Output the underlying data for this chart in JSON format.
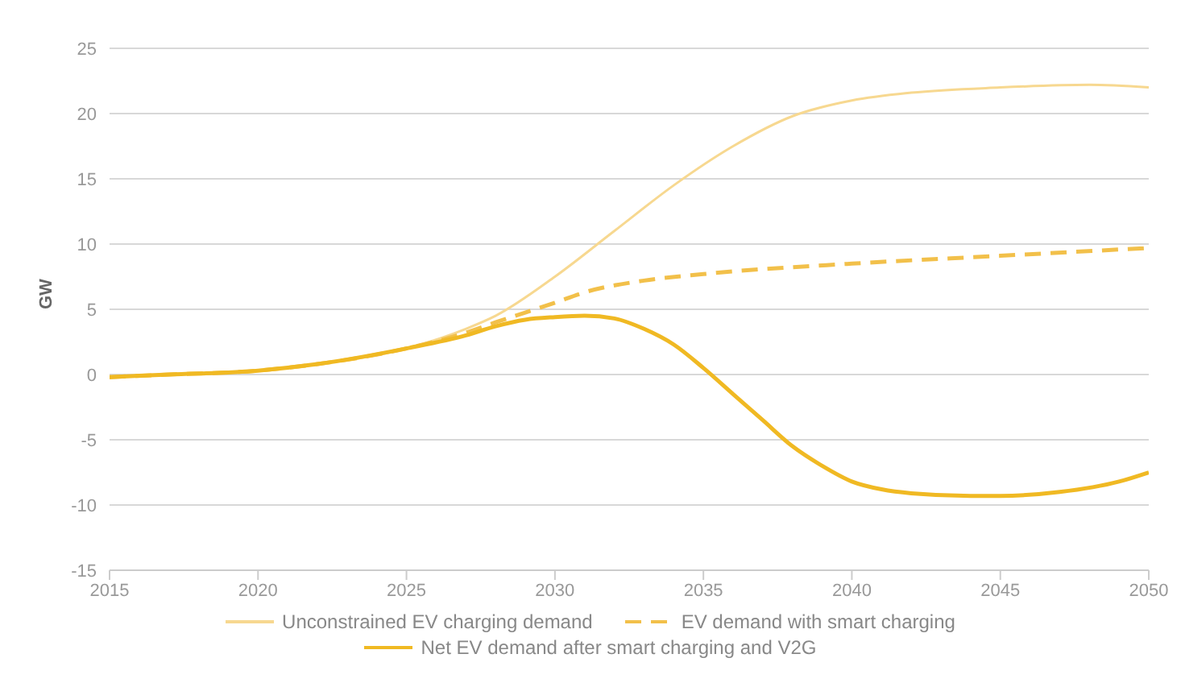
{
  "chart_data": {
    "type": "line",
    "ylabel": "GW",
    "xlim": [
      2015,
      2050
    ],
    "xticks": [
      2015,
      2020,
      2025,
      2030,
      2035,
      2040,
      2045,
      2050
    ],
    "ylim": [
      -15,
      25
    ],
    "yticks": [
      -15,
      -10,
      -5,
      0,
      5,
      10,
      15,
      20,
      25
    ],
    "grid": "y",
    "legend": "bottom",
    "series": [
      {
        "name": "Unconstrained EV charging demand",
        "color": "#f7d890",
        "line_style": "solid",
        "x": [
          2015,
          2017,
          2020,
          2022,
          2025,
          2027,
          2028,
          2030,
          2032,
          2034,
          2036,
          2038,
          2040,
          2042,
          2045,
          2048,
          2050
        ],
        "values": [
          -0.2,
          0,
          0.3,
          0.8,
          2,
          3.5,
          4.5,
          7.5,
          11,
          14.5,
          17.5,
          19.8,
          21,
          21.6,
          22,
          22.2,
          22
        ]
      },
      {
        "name": "EV demand with smart charging",
        "color": "#f2c04a",
        "line_style": "dashed",
        "x": [
          2015,
          2017,
          2020,
          2022,
          2025,
          2027,
          2028,
          2030,
          2031,
          2033,
          2035,
          2040,
          2045,
          2050
        ],
        "values": [
          -0.2,
          0,
          0.3,
          0.8,
          2,
          3.2,
          4,
          5.5,
          6.3,
          7.2,
          7.7,
          8.5,
          9.1,
          9.7
        ]
      },
      {
        "name": "Net EV demand after smart charging and V2G",
        "color": "#f0b923",
        "line_style": "solid",
        "x": [
          2015,
          2017,
          2020,
          2022,
          2025,
          2027,
          2028,
          2029,
          2030,
          2031,
          2032,
          2033,
          2034,
          2035,
          2036,
          2037,
          2038,
          2039,
          2040,
          2041,
          2042,
          2044,
          2045,
          2047,
          2049,
          2050
        ],
        "values": [
          -0.2,
          0,
          0.3,
          0.8,
          2,
          3,
          3.7,
          4.2,
          4.4,
          4.5,
          4.3,
          3.5,
          2.3,
          0.5,
          -1.5,
          -3.5,
          -5.5,
          -7,
          -8.2,
          -8.8,
          -9.1,
          -9.3,
          -9.3,
          -9,
          -8.2,
          -7.5
        ]
      }
    ]
  }
}
